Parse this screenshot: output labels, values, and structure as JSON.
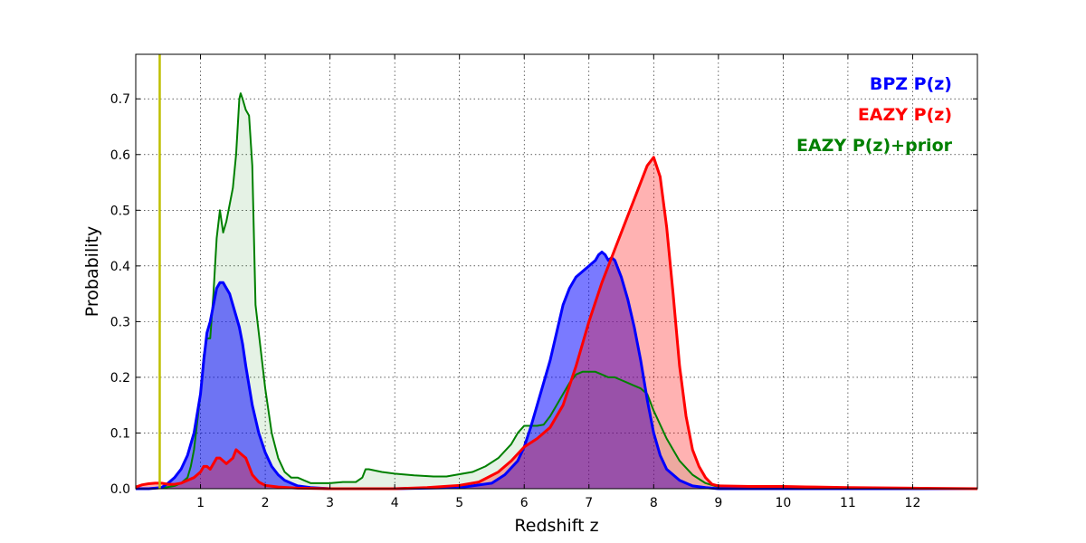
{
  "chart_data": {
    "type": "area",
    "title": "",
    "xlabel": "Redshift z",
    "ylabel": "Probability",
    "xlim": [
      0,
      13
    ],
    "ylim": [
      0,
      0.78
    ],
    "xticks": [
      1,
      2,
      3,
      4,
      5,
      6,
      7,
      8,
      9,
      10,
      11,
      12
    ],
    "xtick_labels": [
      "1",
      "2",
      "3",
      "4",
      "5",
      "6",
      "7",
      "8",
      "9",
      "10",
      "11",
      "12"
    ],
    "yticks": [
      0.0,
      0.1,
      0.2,
      0.3,
      0.4,
      0.5,
      0.6,
      0.7
    ],
    "ytick_labels": [
      "0.0",
      "0.1",
      "0.2",
      "0.3",
      "0.4",
      "0.5",
      "0.6",
      "0.7"
    ],
    "grid": true,
    "legend_position": "top-right",
    "vline": {
      "x": 0.37,
      "color": "#bfbf00"
    },
    "series": [
      {
        "name": "BPZ P(z)",
        "color": "#0000ff",
        "fill": "#0000ff",
        "fill_opacity": 0.52,
        "x": [
          0,
          0.2,
          0.4,
          0.5,
          0.6,
          0.7,
          0.8,
          0.9,
          1.0,
          1.05,
          1.1,
          1.15,
          1.2,
          1.25,
          1.3,
          1.35,
          1.4,
          1.45,
          1.5,
          1.55,
          1.6,
          1.65,
          1.7,
          1.8,
          1.9,
          2.0,
          2.1,
          2.2,
          2.3,
          2.4,
          2.5,
          2.7,
          3.0,
          4.0,
          5.0,
          5.5,
          5.7,
          5.9,
          6.0,
          6.1,
          6.2,
          6.3,
          6.4,
          6.5,
          6.6,
          6.7,
          6.8,
          6.9,
          7.0,
          7.05,
          7.1,
          7.15,
          7.2,
          7.25,
          7.3,
          7.35,
          7.4,
          7.5,
          7.6,
          7.7,
          7.8,
          7.9,
          8.0,
          8.1,
          8.2,
          8.4,
          8.6,
          8.8,
          9.0,
          9.5,
          10,
          11,
          12,
          13
        ],
        "y": [
          0.0,
          0.0,
          0.002,
          0.01,
          0.02,
          0.035,
          0.06,
          0.1,
          0.17,
          0.23,
          0.28,
          0.3,
          0.33,
          0.36,
          0.37,
          0.37,
          0.36,
          0.35,
          0.33,
          0.31,
          0.29,
          0.26,
          0.22,
          0.15,
          0.1,
          0.065,
          0.04,
          0.025,
          0.015,
          0.01,
          0.005,
          0.002,
          0.0,
          0.0,
          0.002,
          0.01,
          0.025,
          0.05,
          0.075,
          0.11,
          0.15,
          0.19,
          0.23,
          0.28,
          0.33,
          0.36,
          0.38,
          0.39,
          0.4,
          0.405,
          0.41,
          0.42,
          0.425,
          0.42,
          0.41,
          0.415,
          0.41,
          0.38,
          0.34,
          0.29,
          0.23,
          0.16,
          0.1,
          0.06,
          0.035,
          0.015,
          0.005,
          0.002,
          0.0,
          0.0,
          0.0,
          0.0,
          0.0,
          0.0
        ]
      },
      {
        "name": "EAZY P(z)",
        "color": "#ff0000",
        "fill": "#ff0000",
        "fill_opacity": 0.3,
        "x": [
          0,
          0.1,
          0.2,
          0.3,
          0.4,
          0.5,
          0.6,
          0.7,
          0.8,
          0.9,
          1.0,
          1.05,
          1.1,
          1.15,
          1.2,
          1.25,
          1.3,
          1.35,
          1.4,
          1.45,
          1.5,
          1.55,
          1.6,
          1.65,
          1.7,
          1.75,
          1.8,
          1.9,
          2.0,
          2.2,
          2.5,
          3.0,
          4.0,
          4.5,
          5.0,
          5.3,
          5.6,
          5.8,
          6.0,
          6.2,
          6.4,
          6.6,
          6.8,
          7.0,
          7.2,
          7.4,
          7.6,
          7.7,
          7.8,
          7.9,
          8.0,
          8.1,
          8.2,
          8.3,
          8.4,
          8.5,
          8.6,
          8.7,
          8.8,
          8.9,
          9.0,
          9.5,
          10,
          10.5,
          11,
          12,
          13
        ],
        "y": [
          0.003,
          0.007,
          0.009,
          0.01,
          0.01,
          0.008,
          0.008,
          0.01,
          0.015,
          0.02,
          0.03,
          0.04,
          0.04,
          0.035,
          0.045,
          0.055,
          0.055,
          0.05,
          0.045,
          0.05,
          0.055,
          0.07,
          0.065,
          0.06,
          0.055,
          0.04,
          0.025,
          0.012,
          0.006,
          0.003,
          0.001,
          0.0,
          0.0,
          0.002,
          0.006,
          0.012,
          0.03,
          0.05,
          0.075,
          0.09,
          0.11,
          0.15,
          0.22,
          0.3,
          0.37,
          0.43,
          0.49,
          0.52,
          0.55,
          0.58,
          0.595,
          0.56,
          0.47,
          0.35,
          0.22,
          0.13,
          0.07,
          0.04,
          0.02,
          0.008,
          0.005,
          0.004,
          0.004,
          0.003,
          0.002,
          0.001,
          0.0
        ]
      },
      {
        "name": "EAZY P(z)+prior",
        "color": "#008000",
        "fill": "#008000",
        "fill_opacity": 0.1,
        "x": [
          0,
          0.2,
          0.4,
          0.6,
          0.7,
          0.8,
          0.85,
          0.9,
          1.0,
          1.05,
          1.1,
          1.15,
          1.2,
          1.25,
          1.3,
          1.35,
          1.4,
          1.45,
          1.5,
          1.55,
          1.6,
          1.62,
          1.65,
          1.7,
          1.75,
          1.8,
          1.85,
          1.9,
          2.0,
          2.1,
          2.2,
          2.3,
          2.4,
          2.5,
          2.6,
          2.7,
          2.8,
          3.0,
          3.2,
          3.4,
          3.5,
          3.55,
          3.6,
          3.8,
          4.0,
          4.3,
          4.6,
          4.8,
          5.0,
          5.2,
          5.4,
          5.6,
          5.8,
          5.9,
          6.0,
          6.1,
          6.2,
          6.3,
          6.4,
          6.5,
          6.6,
          6.7,
          6.8,
          6.9,
          7.0,
          7.1,
          7.2,
          7.3,
          7.4,
          7.5,
          7.6,
          7.7,
          7.8,
          7.9,
          8.0,
          8.2,
          8.4,
          8.6,
          8.8,
          9.0,
          9.5,
          10,
          11,
          12,
          13
        ],
        "y": [
          0.0,
          0.0,
          0.001,
          0.005,
          0.01,
          0.02,
          0.04,
          0.07,
          0.17,
          0.24,
          0.27,
          0.27,
          0.35,
          0.45,
          0.5,
          0.46,
          0.48,
          0.51,
          0.54,
          0.6,
          0.7,
          0.71,
          0.7,
          0.68,
          0.67,
          0.58,
          0.33,
          0.28,
          0.18,
          0.1,
          0.055,
          0.03,
          0.02,
          0.02,
          0.015,
          0.01,
          0.01,
          0.01,
          0.012,
          0.012,
          0.02,
          0.035,
          0.035,
          0.03,
          0.027,
          0.024,
          0.022,
          0.022,
          0.026,
          0.03,
          0.04,
          0.055,
          0.08,
          0.1,
          0.113,
          0.113,
          0.113,
          0.115,
          0.13,
          0.15,
          0.17,
          0.19,
          0.205,
          0.21,
          0.21,
          0.21,
          0.205,
          0.2,
          0.2,
          0.195,
          0.19,
          0.185,
          0.18,
          0.17,
          0.14,
          0.09,
          0.05,
          0.025,
          0.01,
          0.003,
          0.0,
          0.0,
          0.0,
          0.0,
          0.0
        ]
      }
    ]
  }
}
